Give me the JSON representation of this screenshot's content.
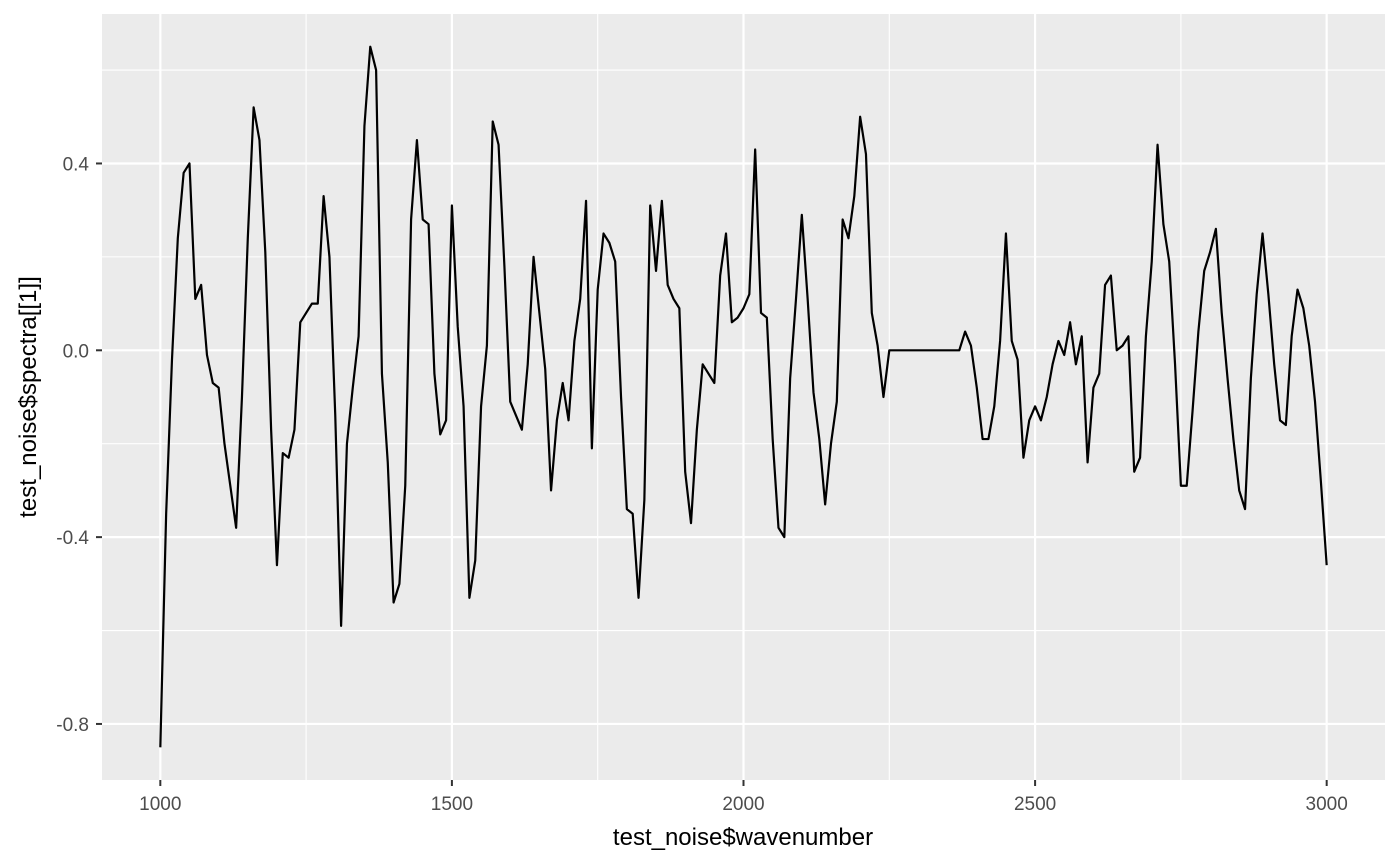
{
  "chart_data": {
    "type": "line",
    "title": "",
    "xlabel": "test_noise$wavenumber",
    "ylabel": "test_noise$spectra[[1]]",
    "xlim": [
      900,
      3100
    ],
    "ylim": [
      -0.92,
      0.72
    ],
    "x_ticks": [
      1000,
      1500,
      2000,
      2500,
      3000
    ],
    "x_tick_labels": [
      "1000",
      "1500",
      "2000",
      "2500",
      "3000"
    ],
    "x_minor_ticks": [
      1250,
      1750,
      2250,
      2750
    ],
    "y_ticks": [
      -0.8,
      -0.4,
      0.0,
      0.4
    ],
    "y_tick_labels": [
      "-0.8",
      "-0.4",
      "0.0",
      "0.4"
    ],
    "y_minor_ticks": [
      -0.6,
      -0.2,
      0.2,
      0.6
    ],
    "grid": true,
    "legend": "none",
    "colors": {
      "panel": "#ebebeb",
      "grid": "#ffffff",
      "line": "#000000",
      "tick_text": "#4d4d4d",
      "tick": "#333333"
    },
    "series": [
      {
        "x": [
          1000,
          1010,
          1020,
          1030,
          1040,
          1050,
          1060,
          1070,
          1080,
          1090,
          1100,
          1110,
          1130,
          1140,
          1150,
          1160,
          1170,
          1180,
          1190,
          1200,
          1210,
          1220,
          1230,
          1240,
          1250,
          1260,
          1270,
          1280,
          1290,
          1300,
          1310,
          1320,
          1330,
          1340,
          1350,
          1360,
          1370,
          1380,
          1390,
          1400,
          1410,
          1420,
          1430,
          1440,
          1450,
          1460,
          1470,
          1480,
          1490,
          1500,
          1510,
          1520,
          1530,
          1540,
          1550,
          1560,
          1570,
          1580,
          1590,
          1600,
          1610,
          1620,
          1630,
          1640,
          1650,
          1660,
          1670,
          1680,
          1690,
          1700,
          1710,
          1720,
          1730,
          1740,
          1750,
          1760,
          1770,
          1780,
          1790,
          1800,
          1810,
          1820,
          1830,
          1840,
          1850,
          1860,
          1870,
          1880,
          1890,
          1900,
          1910,
          1920,
          1930,
          1940,
          1950,
          1960,
          1970,
          1980,
          1990,
          2000,
          2010,
          2020,
          2030,
          2040,
          2050,
          2060,
          2070,
          2080,
          2090,
          2100,
          2110,
          2120,
          2130,
          2140,
          2150,
          2160,
          2170,
          2180,
          2190,
          2200,
          2210,
          2220,
          2230,
          2240,
          2250,
          2260,
          2270,
          2280,
          2290,
          2300,
          2310,
          2320,
          2330,
          2340,
          2350,
          2360,
          2370,
          2380,
          2390,
          2400,
          2410,
          2420,
          2430,
          2440,
          2450,
          2460,
          2470,
          2480,
          2490,
          2500,
          2510,
          2520,
          2530,
          2540,
          2550,
          2560,
          2570,
          2580,
          2590,
          2600,
          2610,
          2620,
          2630,
          2640,
          2650,
          2660,
          2670,
          2680,
          2690,
          2700,
          2710,
          2720,
          2730,
          2740,
          2750,
          2760,
          2770,
          2780,
          2790,
          2800,
          2810,
          2820,
          2830,
          2840,
          2850,
          2860,
          2870,
          2880,
          2890,
          2900,
          2910,
          2920,
          2930,
          2940,
          2950,
          2960,
          2970,
          2980,
          2990,
          3000
        ],
        "y": [
          -0.85,
          -0.35,
          -0.02,
          0.24,
          0.38,
          0.4,
          0.11,
          0.14,
          -0.01,
          -0.07,
          -0.08,
          -0.2,
          -0.38,
          -0.1,
          0.24,
          0.52,
          0.45,
          0.21,
          -0.17,
          -0.46,
          -0.22,
          -0.23,
          -0.17,
          0.06,
          0.08,
          0.1,
          0.1,
          0.33,
          0.2,
          -0.14,
          -0.59,
          -0.2,
          -0.08,
          0.03,
          0.48,
          0.65,
          0.6,
          -0.05,
          -0.24,
          -0.54,
          -0.5,
          -0.29,
          0.28,
          0.45,
          0.28,
          0.27,
          -0.05,
          -0.18,
          -0.15,
          0.31,
          0.05,
          -0.12,
          -0.53,
          -0.45,
          -0.12,
          0.01,
          0.49,
          0.44,
          0.18,
          -0.11,
          -0.14,
          -0.17,
          -0.03,
          0.2,
          0.08,
          -0.04,
          -0.3,
          -0.15,
          -0.07,
          -0.15,
          0.02,
          0.11,
          0.32,
          -0.21,
          0.13,
          0.25,
          0.23,
          0.19,
          -0.1,
          -0.34,
          -0.35,
          -0.53,
          -0.32,
          0.31,
          0.17,
          0.32,
          0.14,
          0.11,
          0.09,
          -0.26,
          -0.37,
          -0.17,
          -0.03,
          -0.05,
          -0.07,
          0.16,
          0.25,
          0.06,
          0.07,
          0.09,
          0.12,
          0.43,
          0.08,
          0.07,
          -0.19,
          -0.38,
          -0.4,
          -0.06,
          0.11,
          0.29,
          0.11,
          -0.09,
          -0.19,
          -0.33,
          -0.2,
          -0.11,
          0.28,
          0.24,
          0.33,
          0.5,
          0.42,
          0.08,
          0.01,
          -0.1,
          0.0,
          0.0,
          0.0,
          0.0,
          0.0,
          0.0,
          0.0,
          0.0,
          0.0,
          0.0,
          0.0,
          0.0,
          0.0,
          0.04,
          0.01,
          -0.08,
          -0.19,
          -0.19,
          -0.12,
          0.02,
          0.25,
          0.02,
          -0.02,
          -0.23,
          -0.15,
          -0.12,
          -0.15,
          -0.1,
          -0.03,
          0.02,
          -0.01,
          0.06,
          -0.03,
          0.03,
          -0.24,
          -0.08,
          -0.05,
          0.14,
          0.16,
          0.0,
          0.01,
          0.03,
          -0.26,
          -0.23,
          0.03,
          0.19,
          0.44,
          0.27,
          0.19,
          -0.03,
          -0.29,
          -0.29,
          -0.13,
          0.04,
          0.17,
          0.21,
          0.26,
          0.08,
          -0.06,
          -0.19,
          -0.3,
          -0.34,
          -0.06,
          0.12,
          0.25,
          0.12,
          -0.03,
          -0.15,
          -0.16,
          0.03,
          0.13,
          0.09,
          0.01,
          -0.11,
          -0.28,
          -0.46
        ]
      }
    ]
  }
}
